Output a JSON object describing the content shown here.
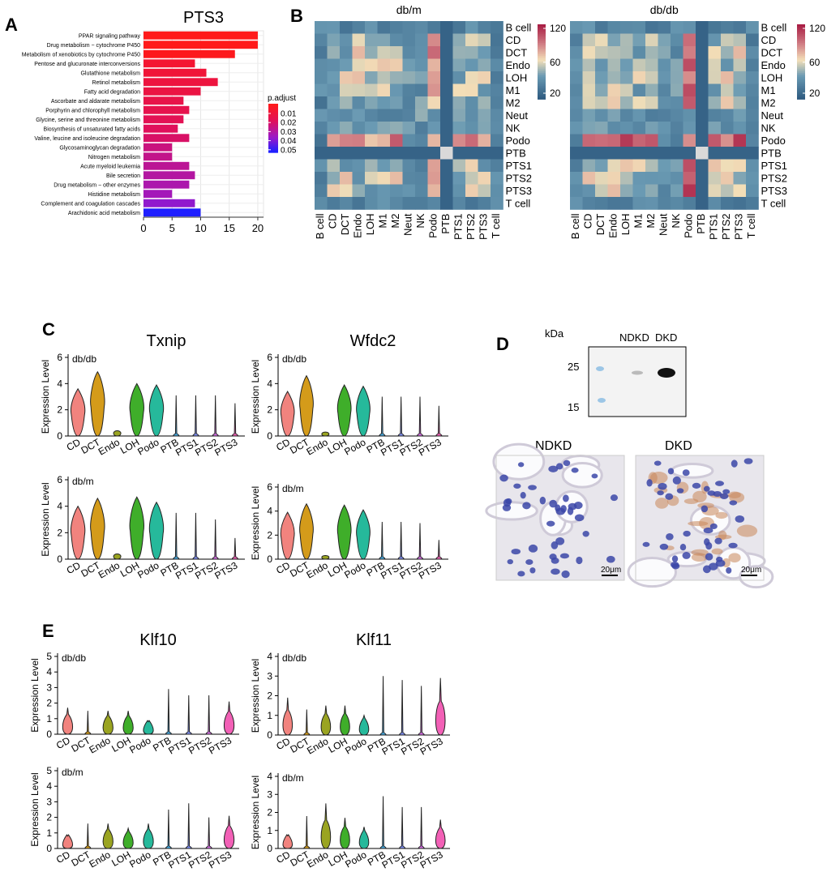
{
  "panels": {
    "A": "A",
    "B": "B",
    "C": "C",
    "D": "D",
    "E": "E"
  },
  "chart_data": [
    {
      "id": "A",
      "type": "bar",
      "title": "PTS3",
      "categories": [
        "PPAR signaling pathway",
        "Drug metabolism − cytochrome P450",
        "Metabolism of xenobiotics by cytochrome P450",
        "Pentose and glucuronate interconversions",
        "Glutathione metabolism",
        "Retinol metabolism",
        "Fatty acid degradation",
        "Ascorbate and aldarate metabolism",
        "Porphyrin and chlorophyll metabolism",
        "Glycine, serine and threonine metabolism",
        "Biosynthesis of unsaturated fatty acids",
        "Valine, leucine and isoleucine degradation",
        "Glycosaminoglycan degradation",
        "Nitrogen metabolism",
        "Acute myeloid leukemia",
        "Bile secretion",
        "Drug metabolism − other enzymes",
        "Histidine metabolism",
        "Complement and coagulation cascades",
        "Arachidonic acid metabolism"
      ],
      "values": [
        20,
        20,
        16,
        9,
        11,
        13,
        10,
        7,
        8,
        7,
        6,
        8,
        5,
        5,
        8,
        9,
        8,
        5,
        9,
        10
      ],
      "p_adjust": [
        0.001,
        0.001,
        0.002,
        0.008,
        0.01,
        0.012,
        0.013,
        0.015,
        0.016,
        0.018,
        0.02,
        0.022,
        0.026,
        0.028,
        0.03,
        0.032,
        0.034,
        0.036,
        0.04,
        0.055
      ],
      "xticks": [
        0,
        5,
        10,
        15,
        20
      ],
      "xlim": [
        0,
        21
      ],
      "legend": {
        "title": "p.adjust",
        "labels": [
          "0.01",
          "0.02",
          "0.03",
          "0.04",
          "0.05"
        ],
        "position": "right"
      }
    },
    {
      "id": "B",
      "type": "heatmap",
      "maps": [
        {
          "title": "db/m",
          "cells": "mild"
        },
        {
          "title": "db/db",
          "cells": "strong"
        }
      ],
      "rows": [
        "B cell",
        "CD",
        "DCT",
        "Endo",
        "LOH",
        "M1",
        "M2",
        "Neut",
        "NK",
        "Podo",
        "PTB",
        "PTS1",
        "PTS2",
        "PTS3",
        "T cell"
      ],
      "cols": [
        "B cell",
        "CD",
        "DCT",
        "Endo",
        "LOH",
        "M1",
        "M2",
        "Neut",
        "NK",
        "Podo",
        "PTB",
        "PTS1",
        "PTS2",
        "PTS3",
        "T cell"
      ],
      "colorbar": {
        "ticks": [
          "120",
          "60",
          "20"
        ],
        "range": [
          10,
          125
        ]
      }
    },
    {
      "id": "C",
      "type": "violin",
      "ylabel": "Expression Level",
      "categories": [
        "CD",
        "DCT",
        "Endo",
        "LOH",
        "Podo",
        "PTB",
        "PTS1",
        "PTS2",
        "PTS3"
      ],
      "plots": [
        {
          "gene": "Txnip",
          "condition": "db/db",
          "ymax": 6,
          "yticks": [
            "0",
            "2",
            "4",
            "6"
          ],
          "heights": [
            3.6,
            4.9,
            0.4,
            4.0,
            3.9,
            3.1,
            3.1,
            3.1,
            2.5
          ]
        },
        {
          "gene": "Wfdc2",
          "condition": "db/db",
          "ymax": 6,
          "yticks": [
            "0",
            "2",
            "4",
            "6"
          ],
          "heights": [
            3.4,
            4.6,
            0.3,
            3.9,
            3.8,
            3.0,
            3.0,
            3.0,
            2.3
          ]
        },
        {
          "gene": "",
          "condition": "db/m",
          "ymax": 6,
          "yticks": [
            "0",
            "2",
            "4",
            "6"
          ],
          "heights": [
            4.0,
            4.6,
            0.4,
            4.7,
            4.3,
            3.5,
            3.5,
            3.0,
            1.6
          ]
        },
        {
          "gene": "",
          "condition": "db/m",
          "ymax": 6,
          "yticks": [
            "0",
            "2",
            "4",
            "6"
          ],
          "heights": [
            3.9,
            4.6,
            0.3,
            4.5,
            4.1,
            3.1,
            3.1,
            3.0,
            1.6
          ]
        }
      ]
    },
    {
      "id": "E",
      "type": "violin",
      "ylabel": "Expression Level",
      "categories": [
        "CD",
        "DCT",
        "Endo",
        "LOH",
        "Podo",
        "PTB",
        "PTS1",
        "PTS2",
        "PTS3"
      ],
      "plots": [
        {
          "gene": "Klf10",
          "condition": "db/db",
          "ymax": 5,
          "yticks": [
            "0",
            "1",
            "2",
            "3",
            "4",
            "5"
          ],
          "heights": [
            1.7,
            1.5,
            1.5,
            1.5,
            0.8,
            2.9,
            2.5,
            2.5,
            2.1
          ]
        },
        {
          "gene": "Klf11",
          "condition": "db/db",
          "ymax": 4,
          "yticks": [
            "0",
            "1",
            "2",
            "3",
            "4"
          ],
          "heights": [
            1.9,
            1.3,
            1.5,
            1.5,
            1.0,
            3.0,
            2.8,
            2.5,
            2.9
          ]
        },
        {
          "gene": "",
          "condition": "db/m",
          "ymax": 5,
          "yticks": [
            "0",
            "1",
            "2",
            "3",
            "4",
            "5"
          ],
          "heights": [
            0.8,
            1.6,
            1.6,
            1.3,
            1.6,
            2.5,
            2.9,
            2.0,
            2.1
          ]
        },
        {
          "gene": "",
          "condition": "db/m",
          "ymax": 4,
          "yticks": [
            "0",
            "1",
            "2",
            "3",
            "4"
          ],
          "heights": [
            0.7,
            1.8,
            2.5,
            1.7,
            1.2,
            2.9,
            2.3,
            2.3,
            1.6
          ]
        }
      ]
    }
  ],
  "westernBlot": {
    "kda_label": "kDa",
    "lanes": [
      "NDKD",
      "DKD"
    ],
    "markers": [
      "25",
      "15"
    ]
  },
  "histology": {
    "images": [
      "NDKD",
      "DKD"
    ],
    "scale": "20μm"
  }
}
